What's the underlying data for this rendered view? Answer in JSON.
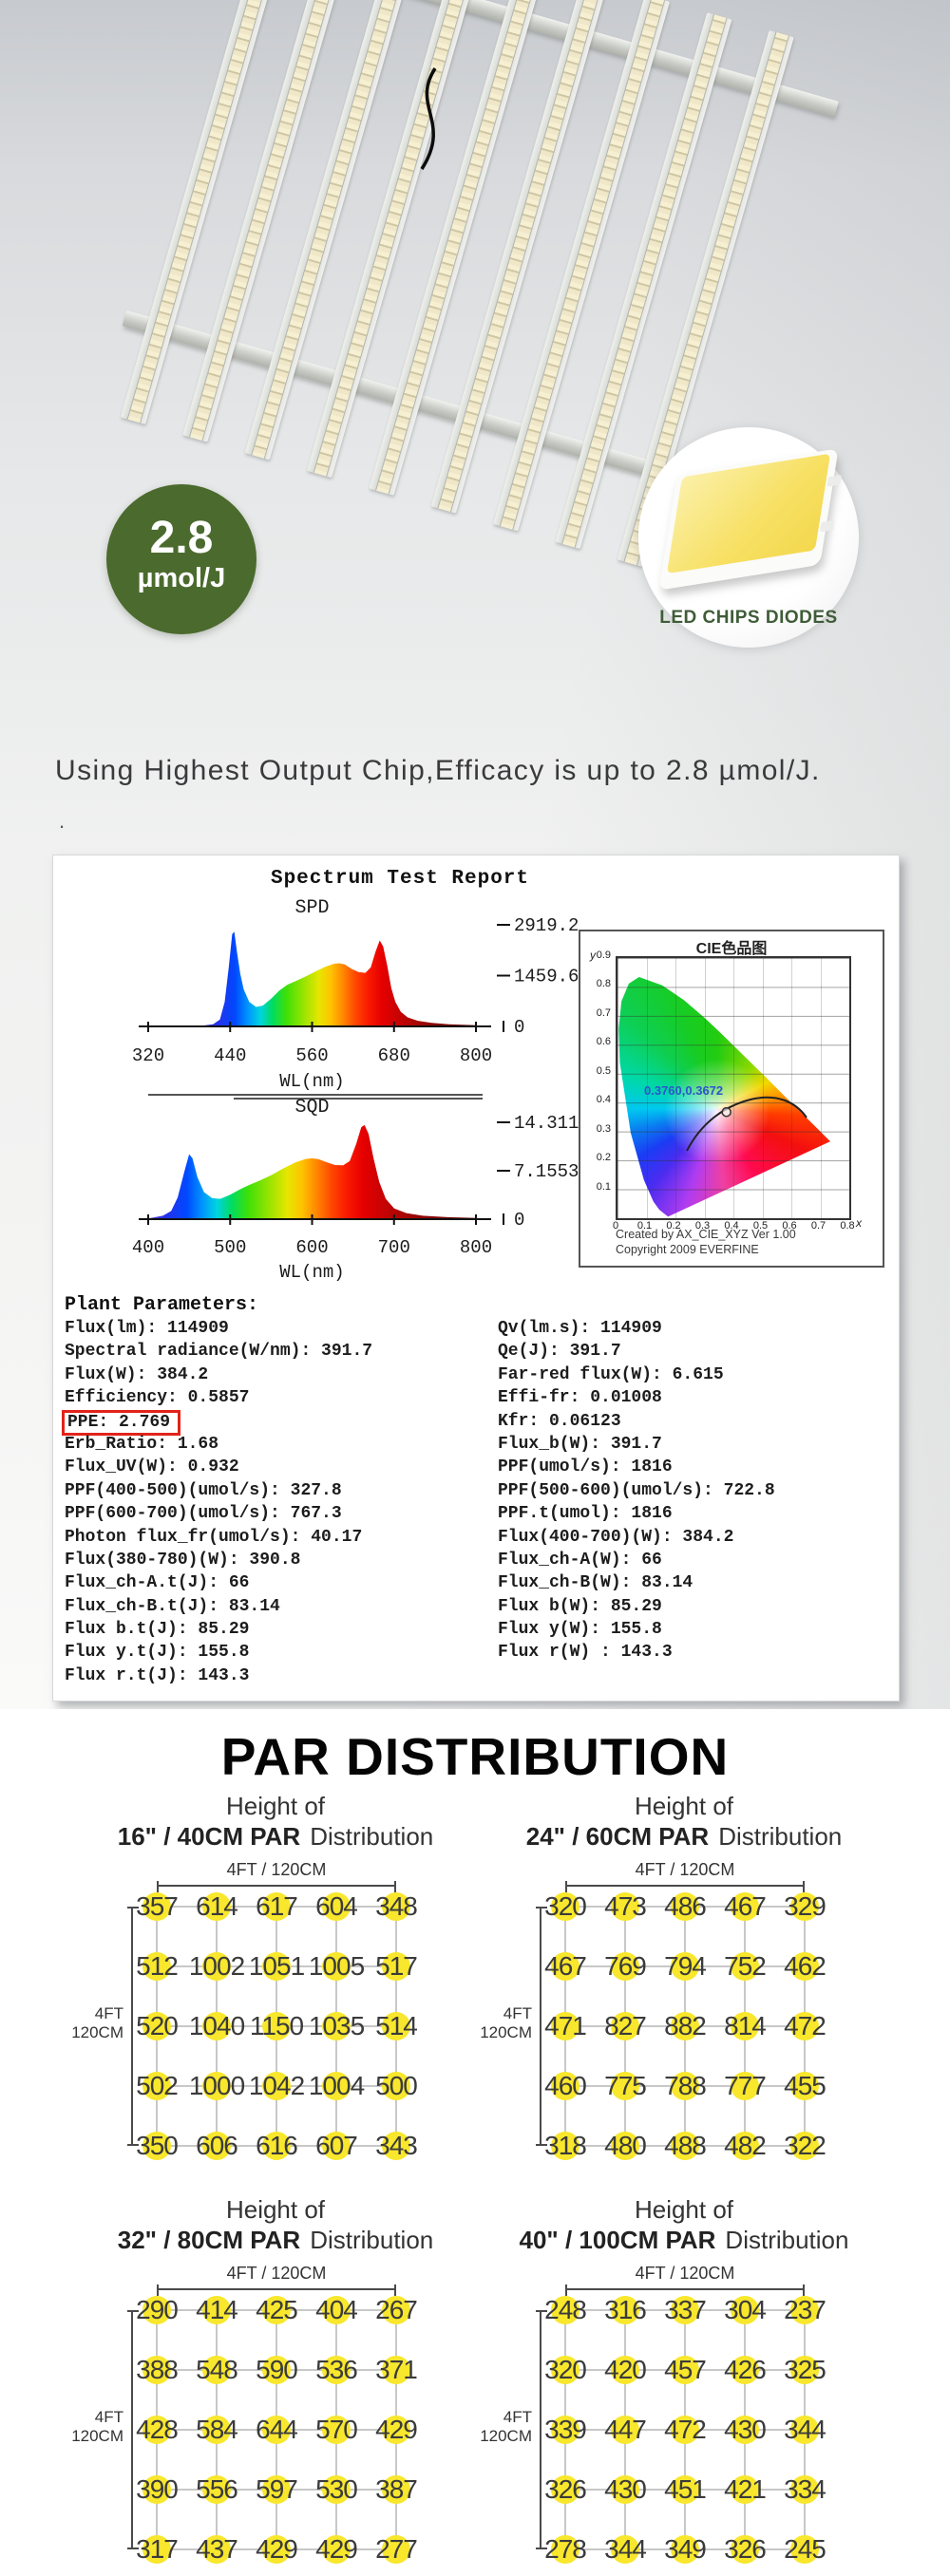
{
  "colors": {
    "badge_green": "#4b6a2d",
    "chip_label_green": "#3f5c38",
    "ppe_box_red": "#e2231a",
    "par_dot_yellow": "#f8e72c"
  },
  "hero": {
    "badge": {
      "value": "2.8",
      "unit": "µmol/J"
    },
    "chip_label": "LED CHIPS DIODES",
    "headline": "Using Highest Output  Chip,Efficacy is up to 2.8 µmol/J.",
    "stray_dot": "."
  },
  "report": {
    "title": "Spectrum Test Report",
    "plant_parameters_heading": "Plant Parameters:",
    "params_left": [
      "Flux(lm): 114909",
      "Spectral radiance(W/nm): 391.7",
      "Flux(W): 384.2",
      "Efficiency: 0.5857",
      "PPE: 2.769",
      "Erb_Ratio: 1.68",
      "Flux_UV(W): 0.932",
      "PPF(400-500)(umol/s): 327.8",
      "PPF(600-700)(umol/s): 767.3",
      "Photon flux_fr(umol/s): 40.17",
      "Flux(380-780)(W): 390.8",
      "Flux_ch-A.t(J): 66",
      "Flux_ch-B.t(J): 83.14",
      "Flux b.t(J): 85.29",
      "Flux y.t(J): 155.8",
      "Flux r.t(J): 143.3"
    ],
    "params_left_highlight_index": 4,
    "params_right": [
      "Qv(lm.s): 114909",
      "Qe(J): 391.7",
      "Far-red flux(W): 6.615",
      "Effi-fr: 0.01008",
      "Kfr: 0.06123",
      "Flux_b(W): 391.7",
      "PPF(umol/s): 1816",
      "PPF(500-600)(umol/s): 722.8",
      "PPF.t(umol): 1816",
      "Flux(400-700)(W): 384.2",
      "Flux_ch-A(W): 66",
      "Flux_ch-B(W): 83.14",
      "Flux b(W): 85.29",
      "Flux y(W): 155.8",
      "Flux r(W) : 143.3"
    ]
  },
  "par_section": {
    "title": "PAR DISTRIBUTION"
  },
  "chart_data": [
    {
      "id": "spd",
      "type": "area",
      "title": "SPD",
      "xlabel": "WL(nm)",
      "xlim": [
        320,
        800
      ],
      "x_ticks": [
        320,
        440,
        560,
        680,
        800
      ],
      "ylim": [
        0,
        2919.2
      ],
      "y_scale_labels": [
        "2919.2",
        "1459.6",
        "0"
      ],
      "points": [
        [
          320,
          12
        ],
        [
          400,
          25
        ],
        [
          415,
          60
        ],
        [
          425,
          200
        ],
        [
          432,
          700
        ],
        [
          438,
          1700
        ],
        [
          443,
          2650
        ],
        [
          446,
          2720
        ],
        [
          450,
          2150
        ],
        [
          455,
          1500
        ],
        [
          460,
          1060
        ],
        [
          468,
          700
        ],
        [
          478,
          560
        ],
        [
          488,
          600
        ],
        [
          500,
          800
        ],
        [
          512,
          1030
        ],
        [
          524,
          1200
        ],
        [
          536,
          1300
        ],
        [
          550,
          1430
        ],
        [
          565,
          1580
        ],
        [
          580,
          1720
        ],
        [
          592,
          1800
        ],
        [
          600,
          1815
        ],
        [
          608,
          1780
        ],
        [
          618,
          1650
        ],
        [
          628,
          1560
        ],
        [
          638,
          1540
        ],
        [
          646,
          1700
        ],
        [
          653,
          2150
        ],
        [
          659,
          2470
        ],
        [
          664,
          2300
        ],
        [
          670,
          1750
        ],
        [
          676,
          1100
        ],
        [
          682,
          700
        ],
        [
          690,
          420
        ],
        [
          700,
          260
        ],
        [
          715,
          160
        ],
        [
          735,
          100
        ],
        [
          760,
          60
        ],
        [
          800,
          35
        ]
      ]
    },
    {
      "id": "sqd",
      "type": "area",
      "title": "SQD",
      "xlabel": "WL(nm)",
      "xlim": [
        400,
        800
      ],
      "x_ticks": [
        400,
        500,
        600,
        700,
        800
      ],
      "ylim": [
        0,
        14.311
      ],
      "y_scale_labels": [
        "14.311",
        "7.1553",
        "0"
      ],
      "points": [
        [
          400,
          0.1
        ],
        [
          418,
          0.5
        ],
        [
          428,
          1.2
        ],
        [
          436,
          3.2
        ],
        [
          444,
          7.0
        ],
        [
          450,
          9.6
        ],
        [
          454,
          9.0
        ],
        [
          460,
          6.2
        ],
        [
          468,
          4.0
        ],
        [
          478,
          3.1
        ],
        [
          488,
          3.0
        ],
        [
          500,
          3.6
        ],
        [
          512,
          4.4
        ],
        [
          524,
          5.1
        ],
        [
          536,
          5.7
        ],
        [
          550,
          6.5
        ],
        [
          565,
          7.5
        ],
        [
          580,
          8.4
        ],
        [
          592,
          8.9
        ],
        [
          600,
          9.0
        ],
        [
          608,
          8.85
        ],
        [
          618,
          8.4
        ],
        [
          628,
          8.0
        ],
        [
          638,
          7.95
        ],
        [
          646,
          8.6
        ],
        [
          654,
          11.2
        ],
        [
          660,
          13.6
        ],
        [
          664,
          13.9
        ],
        [
          669,
          12.6
        ],
        [
          675,
          9.0
        ],
        [
          682,
          5.5
        ],
        [
          690,
          3.0
        ],
        [
          700,
          1.6
        ],
        [
          715,
          0.9
        ],
        [
          735,
          0.5
        ],
        [
          765,
          0.3
        ],
        [
          800,
          0.18
        ]
      ]
    },
    {
      "id": "cie",
      "type": "scatter",
      "title": "CIE色品图",
      "axis_x_letter": "x",
      "axis_y_letter": "y",
      "xlim": [
        0,
        0.8
      ],
      "ylim": [
        0,
        0.9
      ],
      "x_ticks": [
        "0",
        "0.1",
        "0.2",
        "0.3",
        "0.4",
        "0.5",
        "0.6",
        "0.7",
        "0.8"
      ],
      "y_ticks": [
        "0.9",
        "0.8",
        "0.7",
        "0.6",
        "0.5",
        "0.4",
        "0.3",
        "0.2",
        "0.1"
      ],
      "point": [
        0.376,
        0.3672
      ],
      "annotation": "0.3760,0.3672",
      "footnote1": "Created by AX_CIE_XYZ Ver 1.00",
      "footnote2": "Copyright 2009 EVERFINE"
    },
    {
      "id": "par-16-40",
      "type": "heatmap",
      "header_line1": "Height of",
      "header_strong": "16\" / 40CM PAR",
      "header_tail": "Distribution",
      "top_label": "4FT / 120CM",
      "side_label_1": "4FT",
      "side_label_2": "120CM",
      "values": [
        [
          357,
          614,
          617,
          604,
          348
        ],
        [
          512,
          1002,
          1051,
          1005,
          517
        ],
        [
          520,
          1040,
          1150,
          1035,
          514
        ],
        [
          502,
          1000,
          1042,
          1004,
          500
        ],
        [
          350,
          606,
          616,
          607,
          343
        ]
      ]
    },
    {
      "id": "par-24-60",
      "type": "heatmap",
      "header_line1": "Height of",
      "header_strong": "24\" / 60CM PAR",
      "header_tail": "Distribution",
      "top_label": "4FT / 120CM",
      "side_label_1": "4FT",
      "side_label_2": "120CM",
      "values": [
        [
          320,
          473,
          486,
          467,
          329
        ],
        [
          467,
          769,
          794,
          752,
          462
        ],
        [
          471,
          827,
          882,
          814,
          472
        ],
        [
          460,
          775,
          788,
          777,
          455
        ],
        [
          318,
          480,
          488,
          482,
          322
        ]
      ]
    },
    {
      "id": "par-32-80",
      "type": "heatmap",
      "header_line1": "Height of",
      "header_strong": "32\" / 80CM PAR",
      "header_tail": "Distribution",
      "top_label": "4FT / 120CM",
      "side_label_1": "4FT",
      "side_label_2": "120CM",
      "values": [
        [
          290,
          414,
          425,
          404,
          267
        ],
        [
          388,
          548,
          590,
          536,
          371
        ],
        [
          428,
          584,
          644,
          570,
          429
        ],
        [
          390,
          556,
          597,
          530,
          387
        ],
        [
          317,
          437,
          429,
          429,
          277
        ]
      ]
    },
    {
      "id": "par-40-100",
      "type": "heatmap",
      "header_line1": "Height of",
      "header_strong": "40\" / 100CM PAR",
      "header_tail": "Distribution",
      "top_label": "4FT / 120CM",
      "side_label_1": "4FT",
      "side_label_2": "120CM",
      "values": [
        [
          248,
          316,
          337,
          304,
          237
        ],
        [
          320,
          420,
          457,
          426,
          325
        ],
        [
          339,
          447,
          472,
          430,
          344
        ],
        [
          326,
          430,
          451,
          421,
          334
        ],
        [
          278,
          344,
          349,
          326,
          245
        ]
      ]
    }
  ]
}
